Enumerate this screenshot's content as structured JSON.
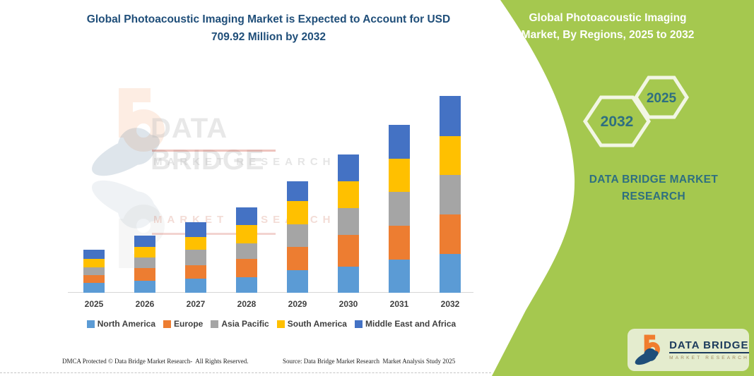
{
  "header": {
    "title": "Global Photoacoustic Imaging Market is Expected to Account for USD 709.92 Million by 2032"
  },
  "chart_data": {
    "type": "bar",
    "stacked": true,
    "title": "Global Photoacoustic Imaging Market is Expected to Account for USD 709.92 Million by 2032",
    "unit": "USD Million",
    "xlabel": "",
    "ylabel": "",
    "ylim": [
      0,
      730
    ],
    "gridlines": false,
    "y_axis_shown": false,
    "legend_position": "bottom",
    "categories": [
      "2025",
      "2026",
      "2027",
      "2028",
      "2029",
      "2030",
      "2031",
      "2032"
    ],
    "series": [
      {
        "name": "North America",
        "color": "#5b9bd5",
        "values": [
          35.6,
          43.3,
          50.9,
          56.0,
          81.4,
          94.1,
          119.6,
          139.9
        ]
      },
      {
        "name": "Europe",
        "color": "#ed7d31",
        "values": [
          28.0,
          45.8,
          48.3,
          66.2,
          84.0,
          114.5,
          122.1,
          142.5
        ]
      },
      {
        "name": "Asia Pacific",
        "color": "#a5a5a5",
        "values": [
          28.0,
          38.2,
          56.0,
          56.0,
          81.4,
          96.7,
          122.1,
          142.5
        ]
      },
      {
        "name": "South America",
        "color": "#ffc000",
        "values": [
          30.5,
          38.2,
          45.8,
          66.2,
          84.0,
          96.7,
          119.6,
          139.9
        ]
      },
      {
        "name": "Middle East and Africa",
        "color": "#4472c4",
        "values": [
          33.1,
          40.7,
          53.4,
          63.6,
          71.2,
          96.7,
          122.1,
          145.0
        ]
      }
    ]
  },
  "watermark": {
    "brand": "DATA BRIDGE",
    "sub": "MARKET  RESEARCH",
    "sub2": "MARKET  RESEARCH"
  },
  "side_panel": {
    "title": "Global Photoacoustic Imaging Market, By Regions, 2025 to 2032",
    "hex_back_year": "2032",
    "hex_front_year": "2025",
    "brand": "DATA BRIDGE MARKET RESEARCH",
    "green": "#a5c84f",
    "teal": "#2e6f80"
  },
  "logo_badge": {
    "brand": "DATA BRIDGE",
    "sub": "MARKET  RESEARCH"
  },
  "footer": {
    "left": "DMCA Protected © Data Bridge Market Research-  All Rights Reserved.",
    "source": "Source: Data Bridge Market Research  Market Analysis Study 2025"
  }
}
